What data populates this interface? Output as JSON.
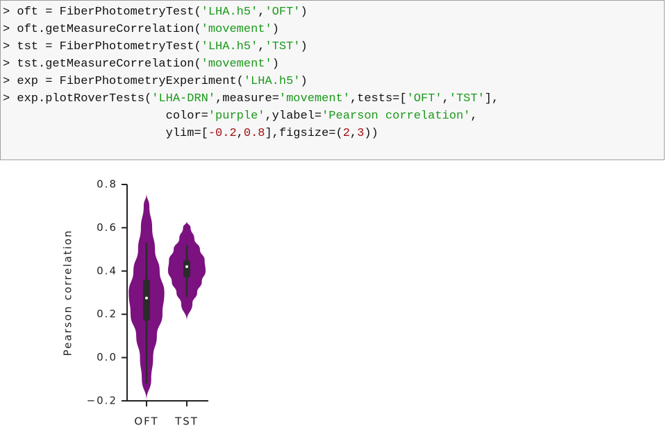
{
  "code": {
    "lines": [
      [
        "> oft = FiberPhotometryTest(",
        "'LHA.h5'",
        ",",
        "'OFT'",
        ")"
      ],
      [
        "> oft.getMeasureCorrelation(",
        "'movement'",
        ")"
      ],
      [
        "> tst = FiberPhotometryTest(",
        "'LHA.h5'",
        ",",
        "'TST'",
        ")"
      ],
      [
        "> tst.getMeasureCorrelation(",
        "'movement'",
        ")"
      ],
      [
        "> exp = FiberPhotometryExperiment(",
        "'LHA.h5'",
        ")"
      ],
      [
        "> exp.plotRoverTests(",
        "'LHA-DRN'",
        ",measure=",
        "'movement'",
        ",tests=[",
        "'OFT'",
        ",",
        "'TST'",
        "],"
      ],
      [
        "                       color=",
        "'purple'",
        ",ylabel=",
        "'Pearson correlation'",
        ","
      ],
      [
        "                       ylim=[",
        "-0.2",
        ",",
        "0.8",
        "],figsize=(",
        "2",
        ",",
        "3",
        "))"
      ]
    ]
  },
  "chart_data": {
    "type": "violin",
    "ylabel": "Pearson correlation",
    "categories": [
      "OFT",
      "TST"
    ],
    "color": "#7b127f",
    "ylim": [
      -0.2,
      0.8
    ],
    "yticks": [
      {
        "value": -0.2,
        "label": "−0.2"
      },
      {
        "value": 0,
        "label": "0.0"
      },
      {
        "value": 0.2,
        "label": "0.2"
      },
      {
        "value": 0.4,
        "label": "0.4"
      },
      {
        "value": 0.6,
        "label": "0.6"
      },
      {
        "value": 0.8,
        "label": "0.8"
      }
    ],
    "series": [
      {
        "y": [
          -0.2,
          -0.1,
          0,
          0.1,
          0.2,
          0.3,
          0.4,
          0.5,
          0.6,
          0.7,
          0.76
        ],
        "density": [
          0,
          0.25,
          0.35,
          0.55,
          0.85,
          0.95,
          0.7,
          0.45,
          0.3,
          0.15,
          0
        ],
        "whisker_low": -0.12,
        "q1": 0.17,
        "median": 0.275,
        "q3": 0.36,
        "whisker_high": 0.53
      },
      {
        "y": [
          0.17,
          0.25,
          0.3,
          0.35,
          0.4,
          0.45,
          0.5,
          0.55,
          0.6,
          0.63
        ],
        "density": [
          0,
          0.3,
          0.55,
          0.8,
          1,
          0.95,
          0.7,
          0.4,
          0.2,
          0
        ],
        "whisker_low": 0.28,
        "q1": 0.37,
        "median": 0.42,
        "q3": 0.45,
        "whisker_high": 0.52
      }
    ]
  }
}
